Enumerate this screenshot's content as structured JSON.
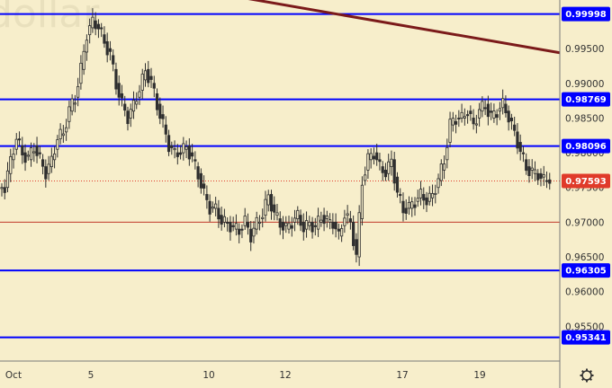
{
  "watermark": "dollar",
  "chart_data": {
    "type": "candlestick",
    "ylim": [
      0.95,
      1.002
    ],
    "y_ticks": [
      "0.99500",
      "0.99000",
      "0.98500",
      "0.98000",
      "0.97500",
      "0.97000",
      "0.96500",
      "0.96000",
      "0.95500"
    ],
    "x_ticks": [
      "Oct",
      "5",
      "10",
      "12",
      "17",
      "19"
    ],
    "levels": [
      {
        "value": 0.99998,
        "label": "0.99998",
        "color": "#0000ff",
        "style": "solid"
      },
      {
        "value": 0.98769,
        "label": "0.98769",
        "color": "#0000ff",
        "style": "solid"
      },
      {
        "value": 0.98096,
        "label": "0.98096",
        "color": "#0000ff",
        "style": "solid"
      },
      {
        "value": 0.96305,
        "label": "0.96305",
        "color": "#0000ff",
        "style": "solid"
      },
      {
        "value": 0.95341,
        "label": "0.95341",
        "color": "#0000ff",
        "style": "solid"
      },
      {
        "value": 0.97,
        "label": "",
        "color": "#c0392b",
        "style": "thin"
      },
      {
        "value": 0.97593,
        "label": "0.97593",
        "color": "#e03a2a",
        "style": "dotted"
      }
    ],
    "current_price": "0.97593",
    "trendline": {
      "from": 1.003,
      "to": 0.9944,
      "color": "#7b1a1a"
    },
    "candle_color": "#2f2f2f",
    "price_path": [
      0.975,
      0.979,
      0.982,
      0.98,
      0.979,
      0.981,
      0.979,
      0.977,
      0.979,
      0.982,
      0.983,
      0.986,
      0.988,
      0.992,
      0.997,
      0.999,
      0.998,
      0.996,
      0.994,
      0.99,
      0.987,
      0.985,
      0.987,
      0.989,
      0.992,
      0.99,
      0.987,
      0.984,
      0.981,
      0.98,
      0.98,
      0.981,
      0.979,
      0.977,
      0.974,
      0.972,
      0.972,
      0.97,
      0.97,
      0.969,
      0.969,
      0.97,
      0.968,
      0.97,
      0.971,
      0.974,
      0.971,
      0.97,
      0.969,
      0.97,
      0.971,
      0.969,
      0.97,
      0.969,
      0.971,
      0.97,
      0.97,
      0.968,
      0.971,
      0.97,
      0.965,
      0.976,
      0.979,
      0.98,
      0.978,
      0.977,
      0.979,
      0.974,
      0.972,
      0.972,
      0.973,
      0.974,
      0.973,
      0.974,
      0.976,
      0.979,
      0.984,
      0.985,
      0.985,
      0.986,
      0.984,
      0.986,
      0.987,
      0.985,
      0.986,
      0.987,
      0.985,
      0.983,
      0.98,
      0.978,
      0.977,
      0.977,
      0.976,
      0.9762
    ]
  }
}
